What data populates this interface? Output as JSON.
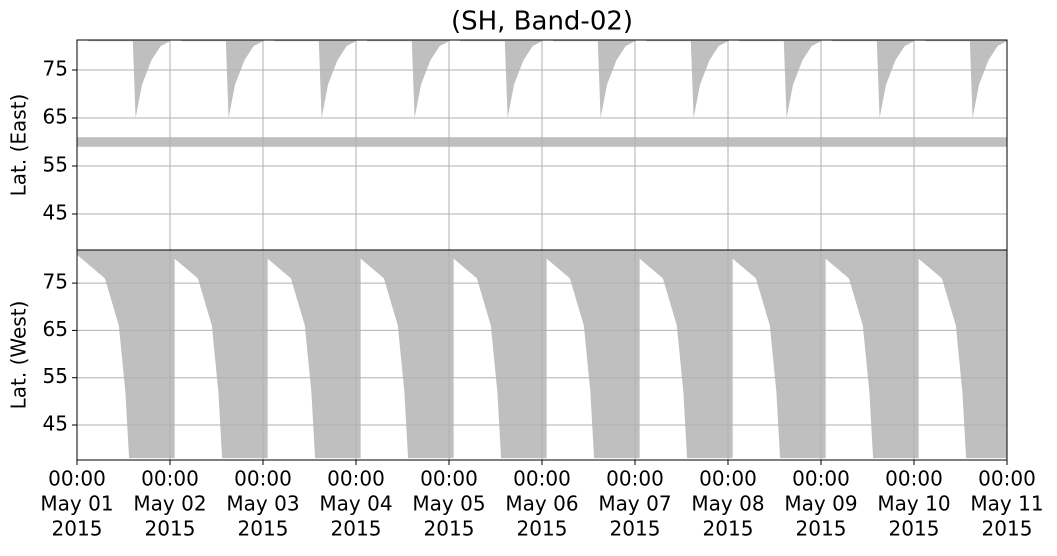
{
  "chart_data": [
    {
      "type": "area",
      "title": "(SH, Band-02)",
      "ylabel": "Lat. (East)",
      "color": "#bfbfbf",
      "grid": true,
      "xlim": [
        0,
        10
      ],
      "xticks": [
        0,
        1,
        2,
        3,
        4,
        5,
        6,
        7,
        8,
        9,
        10
      ],
      "ylim": [
        81.25,
        37.5
      ],
      "yticks": [
        45,
        55,
        65,
        75
      ],
      "band": [
        59,
        61
      ],
      "series": [
        {
          "x": [
            0.12,
            0.6,
            0.63,
            0.7,
            0.8,
            0.9,
            1.0
          ],
          "values": [
            81,
            81,
            65,
            72,
            77,
            80,
            81
          ]
        },
        {
          "x": [
            1.12,
            1.6,
            1.63,
            1.7,
            1.8,
            1.9,
            2.0
          ],
          "values": [
            81,
            81,
            65,
            72,
            77,
            80,
            81
          ]
        },
        {
          "x": [
            2.12,
            2.6,
            2.63,
            2.7,
            2.8,
            2.9,
            3.0
          ],
          "values": [
            81,
            81,
            65,
            72,
            77,
            80,
            81
          ]
        },
        {
          "x": [
            3.12,
            3.6,
            3.63,
            3.7,
            3.8,
            3.9,
            4.0
          ],
          "values": [
            81,
            81,
            65,
            72,
            77,
            80,
            81
          ]
        },
        {
          "x": [
            4.12,
            4.6,
            4.63,
            4.7,
            4.8,
            4.9,
            5.0
          ],
          "values": [
            81,
            81,
            65,
            72,
            77,
            80,
            81
          ]
        },
        {
          "x": [
            5.12,
            5.6,
            5.63,
            5.7,
            5.8,
            5.9,
            6.0
          ],
          "values": [
            81,
            81,
            65,
            72,
            77,
            80,
            81
          ]
        },
        {
          "x": [
            6.12,
            6.6,
            6.63,
            6.7,
            6.8,
            6.9,
            7.0
          ],
          "values": [
            81,
            81,
            65,
            72,
            77,
            80,
            81
          ]
        },
        {
          "x": [
            7.12,
            7.6,
            7.63,
            7.7,
            7.8,
            7.9,
            8.0
          ],
          "values": [
            81,
            81,
            65,
            72,
            77,
            80,
            81
          ]
        },
        {
          "x": [
            8.12,
            8.6,
            8.63,
            8.7,
            8.8,
            8.9,
            9.0
          ],
          "values": [
            81,
            81,
            65,
            72,
            77,
            80,
            81
          ]
        },
        {
          "x": [
            9.12,
            9.6,
            9.63,
            9.7,
            9.8,
            9.9,
            10.0
          ],
          "values": [
            81,
            81,
            65,
            72,
            77,
            80,
            81
          ]
        }
      ]
    },
    {
      "type": "area",
      "ylabel": "Lat. (West)",
      "color": "#bfbfbf",
      "grid": true,
      "xlim": [
        0,
        10
      ],
      "xticks": [
        {
          "value": 0,
          "label": [
            "00:00",
            "May 01",
            "2015"
          ]
        },
        {
          "value": 1,
          "label": [
            "00:00",
            "May 02",
            "2015"
          ]
        },
        {
          "value": 2,
          "label": [
            "00:00",
            "May 03",
            "2015"
          ]
        },
        {
          "value": 3,
          "label": [
            "00:00",
            "May 04",
            "2015"
          ]
        },
        {
          "value": 4,
          "label": [
            "00:00",
            "May 05",
            "2015"
          ]
        },
        {
          "value": 5,
          "label": [
            "00:00",
            "May 06",
            "2015"
          ]
        },
        {
          "value": 6,
          "label": [
            "00:00",
            "May 07",
            "2015"
          ]
        },
        {
          "value": 7,
          "label": [
            "00:00",
            "May 08",
            "2015"
          ]
        },
        {
          "value": 8,
          "label": [
            "00:00",
            "May 09",
            "2015"
          ]
        },
        {
          "value": 9,
          "label": [
            "00:00",
            "May 10",
            "2015"
          ]
        },
        {
          "value": 10,
          "label": [
            "00:00",
            "May 11",
            "2015"
          ]
        }
      ],
      "ylim": [
        82,
        37.6
      ],
      "yticks": [
        75,
        65,
        55,
        45
      ],
      "series": [
        {
          "x": [
            0,
            0.3,
            0.45,
            0.52,
            0.56,
            1.05
          ],
          "values": [
            81,
            76,
            66,
            52,
            38,
            38
          ]
        },
        {
          "x": [
            1,
            1.3,
            1.45,
            1.52,
            1.56,
            2.05
          ],
          "values": [
            81,
            76,
            66,
            52,
            38,
            38
          ]
        },
        {
          "x": [
            2,
            2.3,
            2.45,
            2.52,
            2.56,
            3.05
          ],
          "values": [
            81,
            76,
            66,
            52,
            38,
            38
          ]
        },
        {
          "x": [
            3,
            3.3,
            3.45,
            3.52,
            3.56,
            4.05
          ],
          "values": [
            81,
            76,
            66,
            52,
            38,
            38
          ]
        },
        {
          "x": [
            4,
            4.3,
            4.45,
            4.52,
            4.56,
            5.05
          ],
          "values": [
            81,
            76,
            66,
            52,
            38,
            38
          ]
        },
        {
          "x": [
            5,
            5.3,
            5.45,
            5.52,
            5.56,
            6.05
          ],
          "values": [
            81,
            76,
            66,
            52,
            38,
            38
          ]
        },
        {
          "x": [
            6,
            6.3,
            6.45,
            6.52,
            6.56,
            7.05
          ],
          "values": [
            81,
            76,
            66,
            52,
            38,
            38
          ]
        },
        {
          "x": [
            7,
            7.3,
            7.45,
            7.52,
            7.56,
            8.05
          ],
          "values": [
            81,
            76,
            66,
            52,
            38,
            38
          ]
        },
        {
          "x": [
            8,
            8.3,
            8.45,
            8.52,
            8.56,
            9.05
          ],
          "values": [
            81,
            76,
            66,
            52,
            38,
            38
          ]
        },
        {
          "x": [
            9,
            9.3,
            9.45,
            9.52,
            9.56,
            10.05
          ],
          "values": [
            81,
            76,
            66,
            52,
            38,
            38
          ]
        }
      ]
    }
  ]
}
